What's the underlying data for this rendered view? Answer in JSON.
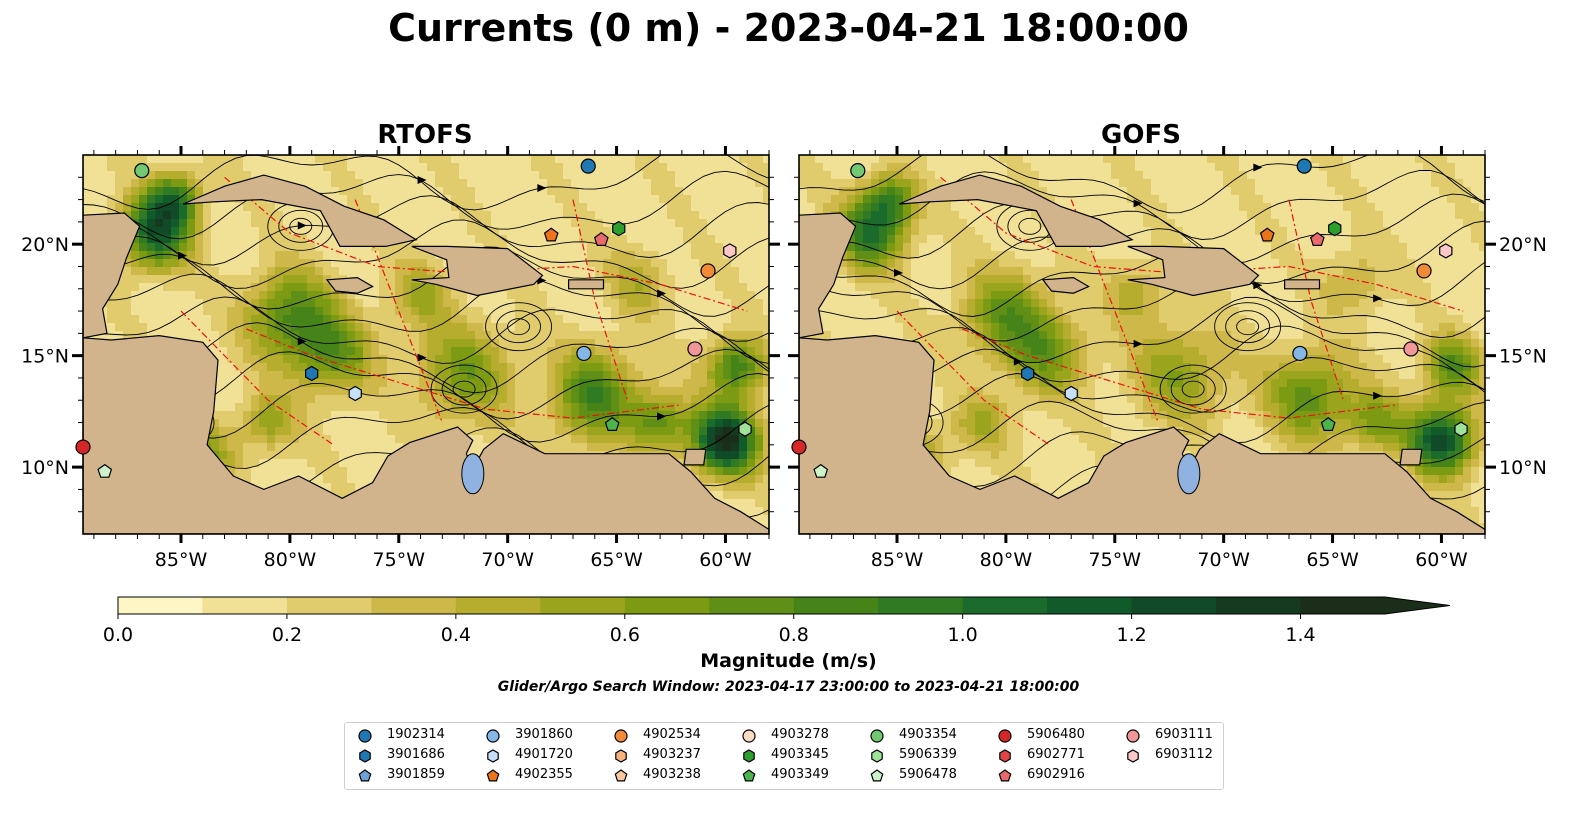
{
  "title": "Currents (0 m) - 2023-04-21 18:00:00",
  "panels": [
    {
      "title": "RTOFS"
    },
    {
      "title": "GOFS"
    }
  ],
  "axes": {
    "x_ticks": [
      "85°W",
      "80°W",
      "75°W",
      "70°W",
      "65°W",
      "60°W"
    ],
    "y_ticks": [
      "20°N",
      "15°N",
      "10°N"
    ]
  },
  "colorbar": {
    "label": "Magnitude (m/s)",
    "ticks": [
      "0.0",
      "0.2",
      "0.4",
      "0.6",
      "0.8",
      "1.0",
      "1.2",
      "1.4"
    ],
    "colors": [
      "#fdf6c5",
      "#f0e197",
      "#e0cc6d",
      "#cfb84a",
      "#b6ad2f",
      "#9aa41c",
      "#7d9b12",
      "#5f8f16",
      "#468419",
      "#2f7a22",
      "#1a6b2c",
      "#115a2a",
      "#104a27",
      "#163a20",
      "#1b2e19"
    ]
  },
  "search_window": "Glider/Argo Search Window: 2023-04-17 23:00:00 to 2023-04-21 18:00:00",
  "legend": [
    {
      "id": "1902314",
      "shape": "circle",
      "color": "#1f77b4"
    },
    {
      "id": "3901686",
      "shape": "hexagon",
      "color": "#1f77b4"
    },
    {
      "id": "3901859",
      "shape": "pentagon",
      "color": "#6fa3d8"
    },
    {
      "id": "3901860",
      "shape": "circle",
      "color": "#84b7e5"
    },
    {
      "id": "4901720",
      "shape": "hexagon",
      "color": "#c6e0f7"
    },
    {
      "id": "4902355",
      "shape": "pentagon",
      "color": "#ed7418"
    },
    {
      "id": "4902534",
      "shape": "circle",
      "color": "#f28a36"
    },
    {
      "id": "4903237",
      "shape": "hexagon",
      "color": "#f8b27a"
    },
    {
      "id": "4903238",
      "shape": "pentagon",
      "color": "#fbc9a0"
    },
    {
      "id": "4903278",
      "shape": "circle",
      "color": "#fcdcc0"
    },
    {
      "id": "4903345",
      "shape": "hexagon",
      "color": "#2ca02c"
    },
    {
      "id": "4903349",
      "shape": "pentagon",
      "color": "#4cb44c"
    },
    {
      "id": "4903354",
      "shape": "circle",
      "color": "#72c972"
    },
    {
      "id": "5906339",
      "shape": "hexagon",
      "color": "#9fe29a"
    },
    {
      "id": "5906478",
      "shape": "pentagon",
      "color": "#cdf3c8"
    },
    {
      "id": "5906480",
      "shape": "circle",
      "color": "#d62728"
    },
    {
      "id": "6902771",
      "shape": "hexagon",
      "color": "#e04646"
    },
    {
      "id": "6902916",
      "shape": "pentagon",
      "color": "#e86a6a"
    },
    {
      "id": "6903111",
      "shape": "circle",
      "color": "#f29797"
    },
    {
      "id": "6903112",
      "shape": "hexagon",
      "color": "#fbc7c7"
    }
  ],
  "chart_data": {
    "type": "heatmap",
    "title": "Currents (0 m) - 2023-04-21 18:00:00",
    "subplots": [
      "RTOFS",
      "GOFS"
    ],
    "variable": "Magnitude (m/s)",
    "xlim": [
      -89.5,
      -58
    ],
    "ylim": [
      7,
      24
    ],
    "x_ticks": [
      -85,
      -80,
      -75,
      -70,
      -65,
      -60
    ],
    "y_ticks": [
      20,
      15,
      10
    ],
    "colorbar_range": [
      0,
      1.5
    ],
    "colorbar_extend": "max",
    "floats": [
      {
        "id": "1902314",
        "lon": -66.3,
        "lat": 23.5
      },
      {
        "id": "3901686",
        "lon": -79,
        "lat": 14.2
      },
      {
        "id": "3901860",
        "lon": -66.5,
        "lat": 15.1
      },
      {
        "id": "4901720",
        "lon": -77,
        "lat": 13.3
      },
      {
        "id": "4902355",
        "lon": -68,
        "lat": 20.4
      },
      {
        "id": "4902534",
        "lon": -60.8,
        "lat": 18.8
      },
      {
        "id": "4903345",
        "lon": -64.9,
        "lat": 20.7
      },
      {
        "id": "4903349",
        "lon": -65.2,
        "lat": 11.9
      },
      {
        "id": "4903354",
        "lon": -86.8,
        "lat": 23.3
      },
      {
        "id": "5906339",
        "lon": -59.1,
        "lat": 11.7
      },
      {
        "id": "5906478",
        "lon": -88.5,
        "lat": 9.8
      },
      {
        "id": "5906480",
        "lon": -89.5,
        "lat": 10.9
      },
      {
        "id": "6902916",
        "lon": -65.7,
        "lat": 20.2
      },
      {
        "id": "6903111",
        "lon": -61.4,
        "lat": 15.3
      },
      {
        "id": "6903112",
        "lon": -59.8,
        "lat": 19.7
      }
    ]
  }
}
